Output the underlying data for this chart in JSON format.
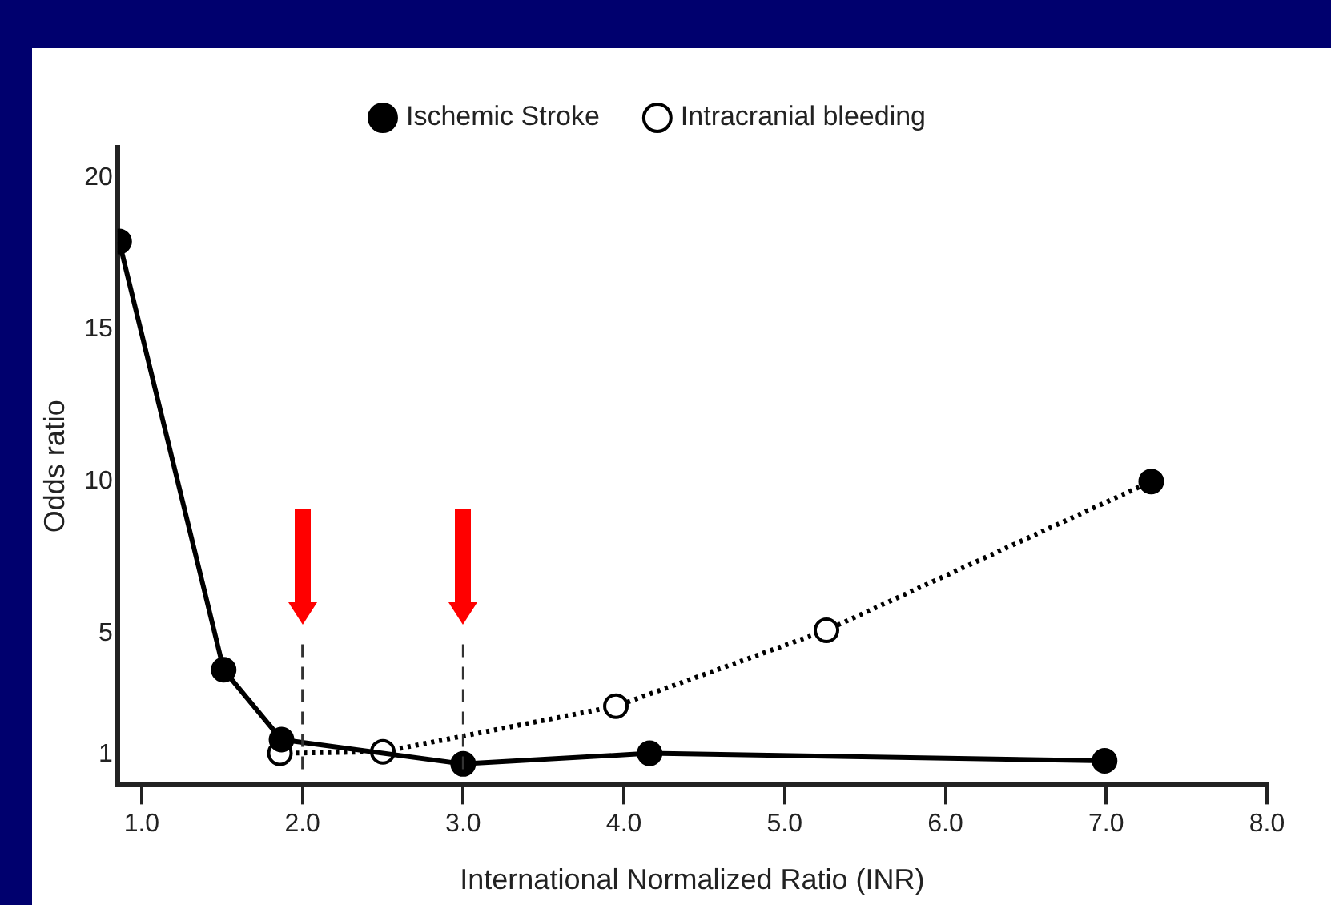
{
  "chart_data": {
    "type": "line",
    "xlabel": "International Normalized Ratio (INR)",
    "ylabel": "Odds ratio",
    "xlim": [
      0.85,
      8.0
    ],
    "xticks": [
      {
        "value": 1,
        "label": "1.0"
      },
      {
        "value": 2,
        "label": "2.0"
      },
      {
        "value": 3,
        "label": "3.0"
      },
      {
        "value": 4,
        "label": "4.0"
      },
      {
        "value": 5,
        "label": "5.0"
      },
      {
        "value": 6,
        "label": "6.0"
      },
      {
        "value": 7,
        "label": "7.0"
      },
      {
        "value": 8,
        "label": "8.0"
      }
    ],
    "ylim": [
      0,
      21
    ],
    "yticks": [
      1,
      5,
      10,
      15,
      20
    ],
    "grid": false,
    "legend": "top",
    "marker": "circle",
    "series": [
      {
        "name": "Ischemic Stroke",
        "color": "#000000",
        "line_style": "solid",
        "x": [
          0.86,
          1.51,
          1.87,
          3.0,
          4.16,
          6.99
        ],
        "values": [
          17.9,
          3.8,
          1.5,
          0.7,
          1.05,
          0.8
        ]
      },
      {
        "name": "Intracranial bleeding",
        "color": "#000000",
        "colors": [
          "#ffffff",
          "#ffffff",
          "#ffffff",
          "#ffffff",
          "#000000"
        ],
        "line_style": "dotted",
        "x": [
          1.86,
          2.5,
          3.95,
          5.26,
          7.28
        ],
        "values": [
          1.05,
          1.1,
          2.6,
          5.1,
          10.0
        ]
      }
    ],
    "ref_lines": [
      {
        "axis": "x",
        "value": 2.0,
        "line_style": "dashed",
        "color": "#333333"
      },
      {
        "axis": "x",
        "value": 3.0,
        "line_style": "dashed",
        "color": "#333333"
      }
    ]
  }
}
